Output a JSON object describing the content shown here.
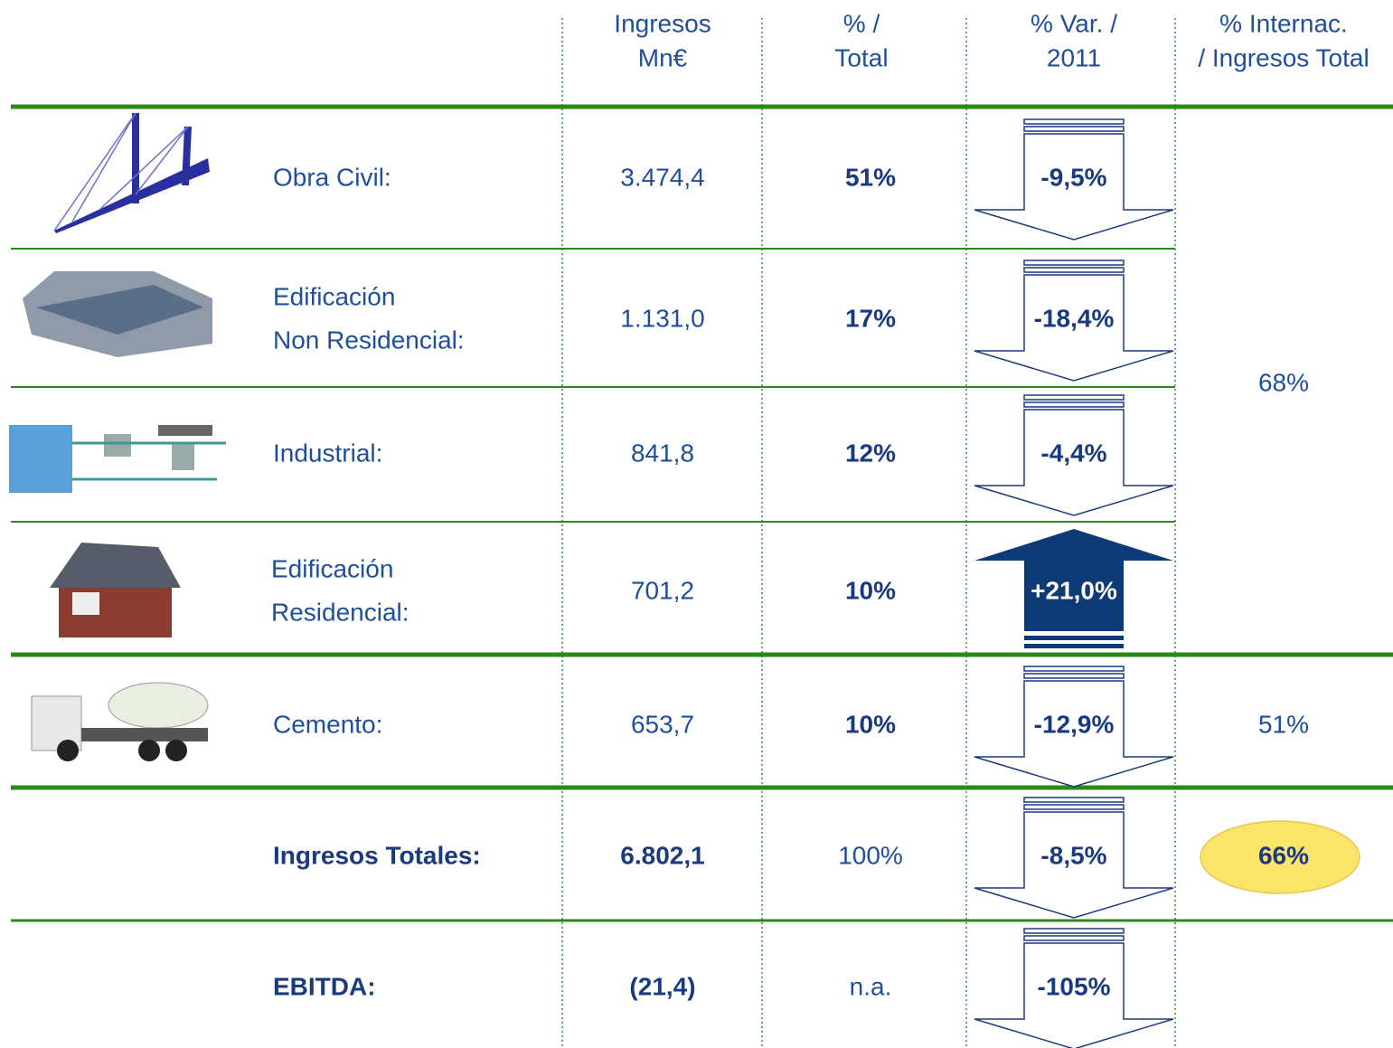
{
  "table": {
    "header": [
      [
        "Ingresos",
        "Mn€"
      ],
      [
        "% /",
        "Total"
      ],
      [
        "% Var. /",
        "2011"
      ],
      [
        "% Internac.",
        "/ Ingresos Total"
      ]
    ],
    "rows": [
      {
        "label": [
          "Obra Civil:"
        ],
        "ingresos": "3.474,4",
        "total": "51%",
        "var": "-9,5%",
        "direction": "down"
      },
      {
        "label": [
          "Edificación",
          "Non Residencial:"
        ],
        "ingresos": "1.131,0",
        "total": "17%",
        "var": "-18,4%",
        "direction": "down"
      },
      {
        "label": [
          "Industrial:"
        ],
        "ingresos": "841,8",
        "total": "12%",
        "var": "-4,4%",
        "direction": "down"
      },
      {
        "label": [
          "Edificación",
          "Residencial:"
        ],
        "ingresos": "701,2",
        "total": "10%",
        "var": "+21,0%",
        "direction": "up"
      },
      {
        "label": [
          "Cemento:"
        ],
        "ingresos": "653,7",
        "total": "10%",
        "var": "-12,9%",
        "direction": "down"
      },
      {
        "label": [
          "Ingresos Totales:"
        ],
        "ingresos": "6.802,1",
        "total": "100%",
        "var": "-8,5%",
        "direction": "down"
      },
      {
        "label": [
          "EBITDA:"
        ],
        "ingresos": "(21,4)",
        "total": "n.a.",
        "var": "-105%",
        "direction": "down"
      }
    ],
    "internac": [
      "68%",
      "51%",
      "66%"
    ]
  }
}
